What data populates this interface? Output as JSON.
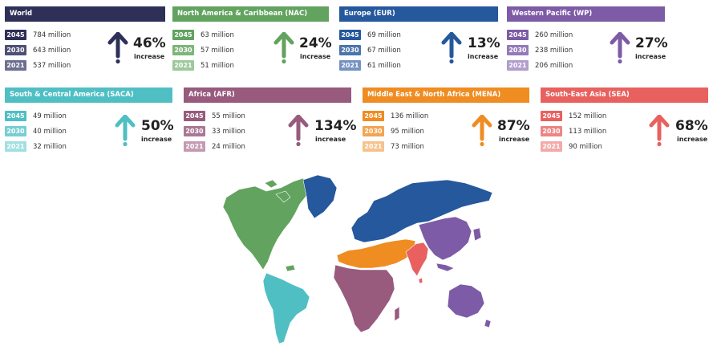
{
  "regions": [
    {
      "name": "World",
      "color": "#2e3057",
      "c2045": "#2e3057",
      "c2030": "#4d4f75",
      "c2021": "#6d6f90",
      "rows": [
        {
          "year": "2045",
          "value": "784 million"
        },
        {
          "year": "2030",
          "value": "643 million"
        },
        {
          "year": "2021",
          "value": "537 million"
        }
      ],
      "percent": "46%",
      "increase": "increase"
    },
    {
      "name": "North America & Caribbean (NAC)",
      "color": "#62a35f",
      "c2045": "#62a35f",
      "c2030": "#7db57a",
      "c2021": "#9ec99b",
      "rows": [
        {
          "year": "2045",
          "value": "63 million"
        },
        {
          "year": "2030",
          "value": "57 million"
        },
        {
          "year": "2021",
          "value": "51 million"
        }
      ],
      "percent": "24%",
      "increase": "increase"
    },
    {
      "name": "Europe (EUR)",
      "color": "#25589c",
      "c2045": "#25589c",
      "c2030": "#4a74ad",
      "c2021": "#7592c2",
      "rows": [
        {
          "year": "2045",
          "value": "69 million"
        },
        {
          "year": "2030",
          "value": "67 million"
        },
        {
          "year": "2021",
          "value": "61 million"
        }
      ],
      "percent": "13%",
      "increase": "increase"
    },
    {
      "name": "Western Pacific (WP)",
      "color": "#7d5ba6",
      "c2045": "#7d5ba6",
      "c2030": "#9579b8",
      "c2021": "#b29dcc",
      "rows": [
        {
          "year": "2045",
          "value": "260 million"
        },
        {
          "year": "2030",
          "value": "238 million"
        },
        {
          "year": "2021",
          "value": "206 million"
        }
      ],
      "percent": "27%",
      "increase": "increase"
    },
    {
      "name": "South & Central America (SACA)",
      "color": "#4fbfc4",
      "c2045": "#4fbfc4",
      "c2030": "#77ced2",
      "c2021": "#a2dfe2",
      "rows": [
        {
          "year": "2045",
          "value": "49 million"
        },
        {
          "year": "2030",
          "value": "40 million"
        },
        {
          "year": "2021",
          "value": "32 million"
        }
      ],
      "percent": "50%",
      "increase": "increase"
    },
    {
      "name": "Africa (AFR)",
      "color": "#985a7d",
      "c2045": "#985a7d",
      "c2030": "#ac7795",
      "c2021": "#c59ab2",
      "rows": [
        {
          "year": "2045",
          "value": "55 million"
        },
        {
          "year": "2030",
          "value": "33 million"
        },
        {
          "year": "2021",
          "value": "24 million"
        }
      ],
      "percent": "134%",
      "increase": "increase"
    },
    {
      "name": "Middle East & North Africa (MENA)",
      "color": "#ef8c22",
      "c2045": "#ef8c22",
      "c2030": "#f2a552",
      "c2021": "#f6c38c",
      "rows": [
        {
          "year": "2045",
          "value": "136 million"
        },
        {
          "year": "2030",
          "value": "95 million"
        },
        {
          "year": "2021",
          "value": "73 million"
        }
      ],
      "percent": "87%",
      "increase": "increase"
    },
    {
      "name": "South-East Asia (SEA)",
      "color": "#e8615f",
      "c2045": "#e8615f",
      "c2030": "#ed8583",
      "c2021": "#f3aaa8",
      "rows": [
        {
          "year": "2045",
          "value": "152 million"
        },
        {
          "year": "2030",
          "value": "113 million"
        },
        {
          "year": "2021",
          "value": "90 million"
        }
      ],
      "percent": "68%",
      "increase": "increase"
    }
  ]
}
